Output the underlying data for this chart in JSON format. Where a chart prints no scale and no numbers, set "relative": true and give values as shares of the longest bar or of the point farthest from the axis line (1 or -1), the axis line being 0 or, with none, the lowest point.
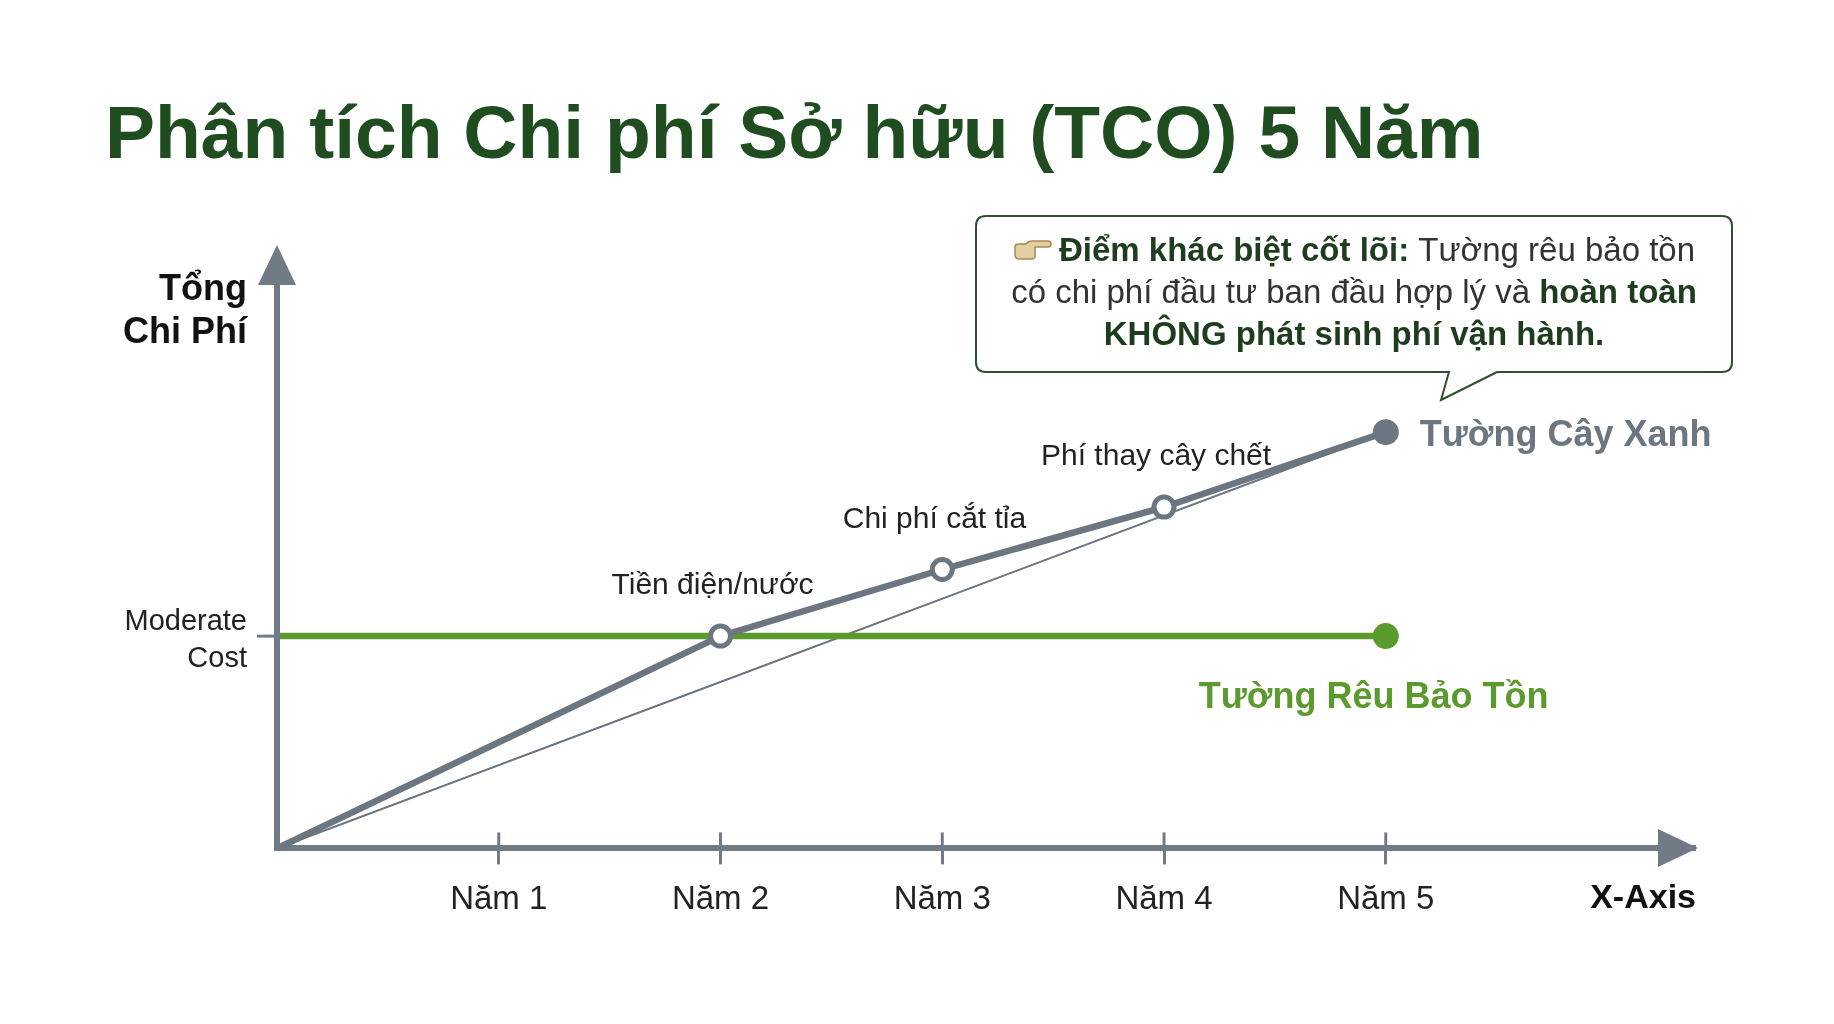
{
  "chart_data": {
    "type": "line",
    "title": "Phân tích Chi phí Sở hữu (TCO) 5 Năm",
    "xlabel": "X-Axis",
    "ylabel": "Tổng Chi Phí",
    "relative": true,
    "categories": [
      null,
      "Năm 1",
      "Năm 2",
      "Năm 3",
      "Năm 4",
      "Năm 5"
    ],
    "series": [
      {
        "name": "Tường Cây Xanh",
        "color": "#6b7680",
        "values": [
          0,
          null,
          0.51,
          0.67,
          0.82,
          1
        ],
        "marker": "circle"
      },
      {
        "name": "Tường Rêu Bảo Tồn",
        "color": "#5b9a2c",
        "values": [
          0.51,
          null,
          null,
          null,
          null,
          0.51
        ],
        "marker": "circle"
      },
      {
        "color": "#6b7680",
        "values": [
          0,
          null,
          null,
          null,
          null,
          1
        ]
      }
    ],
    "annotations": [
      "Moderate Cost",
      "Điểm khác biệt cốt lõi:",
      "Tường rêu bảo tồn",
      "có chi phí đầu tư ban đầu hợp lý và",
      "hoàn toàn",
      "KHÔNG phát sinh phí vận hành.",
      {
        "text": "Tiền điện/nước",
        "x": "Năm 2",
        "y": 0.51
      },
      {
        "text": "Chi phí cắt tỉa",
        "x": "Năm 3",
        "y": 0.67
      },
      {
        "text": "Phí thay cây chết",
        "x": "Năm 4",
        "y": 0.82
      }
    ],
    "legend": false,
    "grid": false
  }
}
